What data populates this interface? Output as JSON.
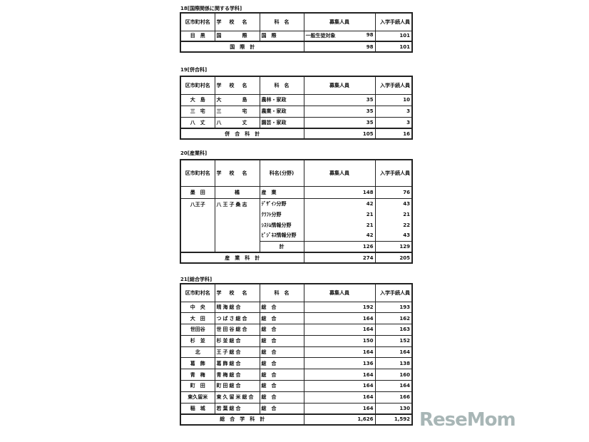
{
  "header": {
    "district": "区市町村名",
    "school": "学　校　名",
    "course": "科　名",
    "course_field": "科名(分野)",
    "capacity": "募集人員",
    "enrolled": "入学手続人員"
  },
  "sections": [
    {
      "title": "18[国際関係に関する学科]",
      "course_header": "科　名",
      "rows": [
        {
          "district": "目　黒",
          "school": "国　　　際",
          "course": "国　際",
          "note": "一般生徒対象",
          "capacity": "98",
          "enrolled": "101"
        }
      ],
      "total": {
        "label": "国　際　計",
        "capacity": "98",
        "enrolled": "101"
      }
    },
    {
      "title": "19[併合科]",
      "course_header": "科　名",
      "rows": [
        {
          "district": "大　島",
          "school": "大　　　島",
          "course": "農林・家政",
          "capacity": "35",
          "enrolled": "10"
        },
        {
          "district": "三　宅",
          "school": "三　　　宅",
          "course": "農業・家政",
          "capacity": "35",
          "enrolled": "3"
        },
        {
          "district": "八　丈",
          "school": "八　　　丈",
          "course": "園芸・家政",
          "capacity": "35",
          "enrolled": "3"
        }
      ],
      "total": {
        "label": "併　合　科　計",
        "capacity": "105",
        "enrolled": "16"
      }
    },
    {
      "title": "20[産業科]",
      "course_header": "科名(分野)",
      "rows": [
        {
          "district": "墨　田",
          "school": "橘",
          "course": "産　業",
          "capacity": "148",
          "enrolled": "76"
        }
      ],
      "group": {
        "district": "八王子",
        "school": "八王子桑志",
        "subrows": [
          {
            "course": "ﾃﾞｻﾞｲﾝ分野",
            "capacity": "42",
            "enrolled": "43"
          },
          {
            "course": "ｸﾗﾌﾄ分野",
            "capacity": "21",
            "enrolled": "21"
          },
          {
            "course": "ｼｽﾃﾑ情報分野",
            "capacity": "21",
            "enrolled": "22"
          },
          {
            "course": "ﾋﾞｼﾞﾈｽ情報分野",
            "capacity": "42",
            "enrolled": "43"
          }
        ],
        "subtotal": {
          "label": "計",
          "capacity": "126",
          "enrolled": "129"
        }
      },
      "total": {
        "label": "産　業　科　計",
        "capacity": "274",
        "enrolled": "205"
      }
    },
    {
      "title": "21[総合学科]",
      "course_header": "科　名",
      "rows": [
        {
          "district": "中　央",
          "school": "晴海総合",
          "course": "総　合",
          "capacity": "192",
          "enrolled": "193"
        },
        {
          "district": "大　田",
          "school": "つばさ総合",
          "course": "総　合",
          "capacity": "164",
          "enrolled": "162"
        },
        {
          "district": "世田谷",
          "school": "世田谷総合",
          "course": "総　合",
          "capacity": "164",
          "enrolled": "163"
        },
        {
          "district": "杉　並",
          "school": "杉並総合",
          "course": "総　合",
          "capacity": "150",
          "enrolled": "152"
        },
        {
          "district": "北",
          "school": "王子総合",
          "course": "総　合",
          "capacity": "164",
          "enrolled": "164"
        },
        {
          "district": "葛　飾",
          "school": "葛飾総合",
          "course": "総　合",
          "capacity": "136",
          "enrolled": "138"
        },
        {
          "district": "青　梅",
          "school": "青梅総合",
          "course": "総　合",
          "capacity": "164",
          "enrolled": "160"
        },
        {
          "district": "町　田",
          "school": "町田総合",
          "course": "総　合",
          "capacity": "164",
          "enrolled": "164"
        },
        {
          "district": "東久留米",
          "school": "東久留米総合",
          "course": "総　合",
          "capacity": "164",
          "enrolled": "166"
        },
        {
          "district": "稲　城",
          "school": "若葉総合",
          "course": "総　合",
          "capacity": "164",
          "enrolled": "130"
        }
      ],
      "total": {
        "label": "総　合　学　科　計",
        "capacity": "1,626",
        "enrolled": "1,592"
      }
    }
  ],
  "watermark": "ReseMom"
}
